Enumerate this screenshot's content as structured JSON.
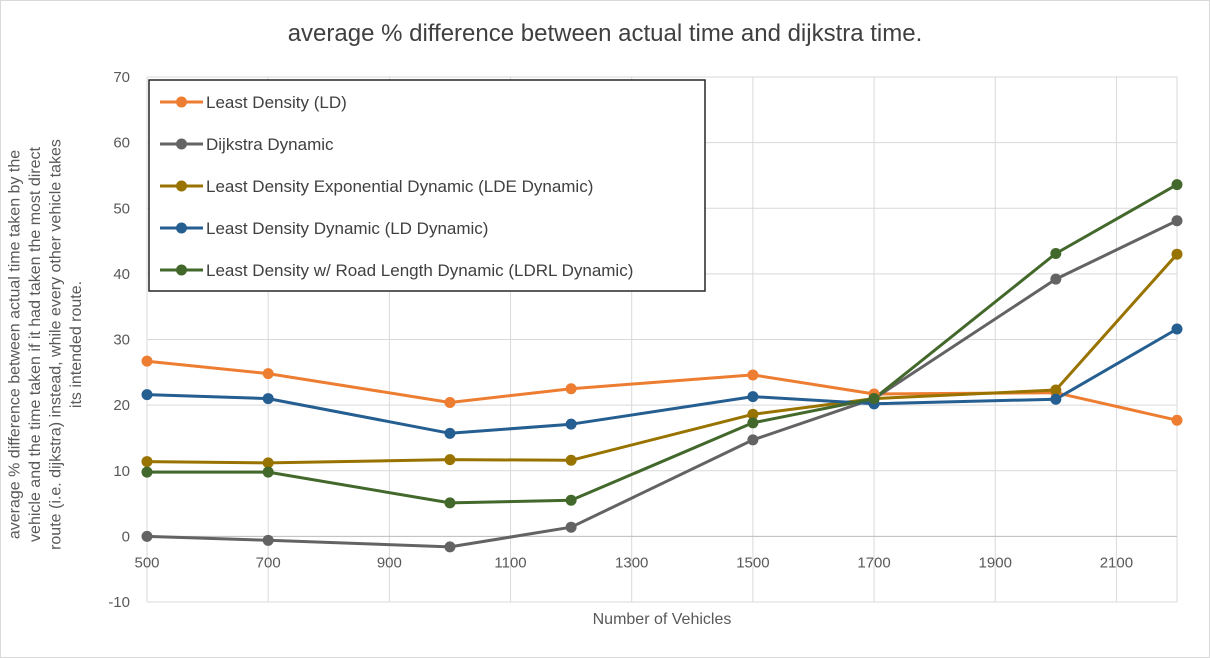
{
  "chart_data": {
    "type": "line",
    "title": "average % difference between actual time and dijkstra time.",
    "xlabel": "Number of Vehicles",
    "ylabel": "average % difference between actual time taken by the vehicle and the time taken if it had taken the most direct route (i.e. dijkstra) instead, while every other vehicle takes its intended route.",
    "ylabel_lines": [
      "average % difference between actual time taken by the",
      "vehicle and the time taken if it had taken the most direct",
      "route (i.e. dijkstra) instead, while every other vehicle takes",
      "its intended route."
    ],
    "xlim": [
      500,
      2200
    ],
    "ylim": [
      -10,
      70
    ],
    "x_ticks": [
      500,
      700,
      900,
      1100,
      1300,
      1500,
      1700,
      1900,
      2100
    ],
    "y_ticks": [
      -10,
      0,
      10,
      20,
      30,
      40,
      50,
      60,
      70
    ],
    "grid": true,
    "legend_position": "top-left",
    "x": [
      500,
      700,
      1000,
      1200,
      1500,
      1700,
      2000,
      2200
    ],
    "series": [
      {
        "name": "Least Density (LD)",
        "color": "#ED7D31",
        "values": [
          26.7,
          24.8,
          20.4,
          22.5,
          24.6,
          21.7,
          21.9,
          17.7
        ]
      },
      {
        "name": "Dijkstra Dynamic",
        "color": "#636363",
        "values": [
          0,
          -0.6,
          -1.6,
          1.4,
          14.7,
          21.0,
          39.2,
          48.1
        ]
      },
      {
        "name": "Least Density Exponential Dynamic (LDE Dynamic)",
        "color": "#997300",
        "values": [
          11.4,
          11.2,
          11.7,
          11.6,
          18.6,
          21.0,
          22.3,
          43.0
        ]
      },
      {
        "name": "Least Density Dynamic (LD Dynamic)",
        "color": "#255E91",
        "values": [
          21.6,
          21.0,
          15.7,
          17.1,
          21.3,
          20.2,
          20.9,
          31.6
        ]
      },
      {
        "name": "Least Density w/ Road Length Dynamic (LDRL Dynamic)",
        "color": "#43682B",
        "values": [
          9.8,
          9.8,
          5.1,
          5.5,
          17.3,
          21.0,
          43.1,
          53.6
        ]
      }
    ]
  }
}
